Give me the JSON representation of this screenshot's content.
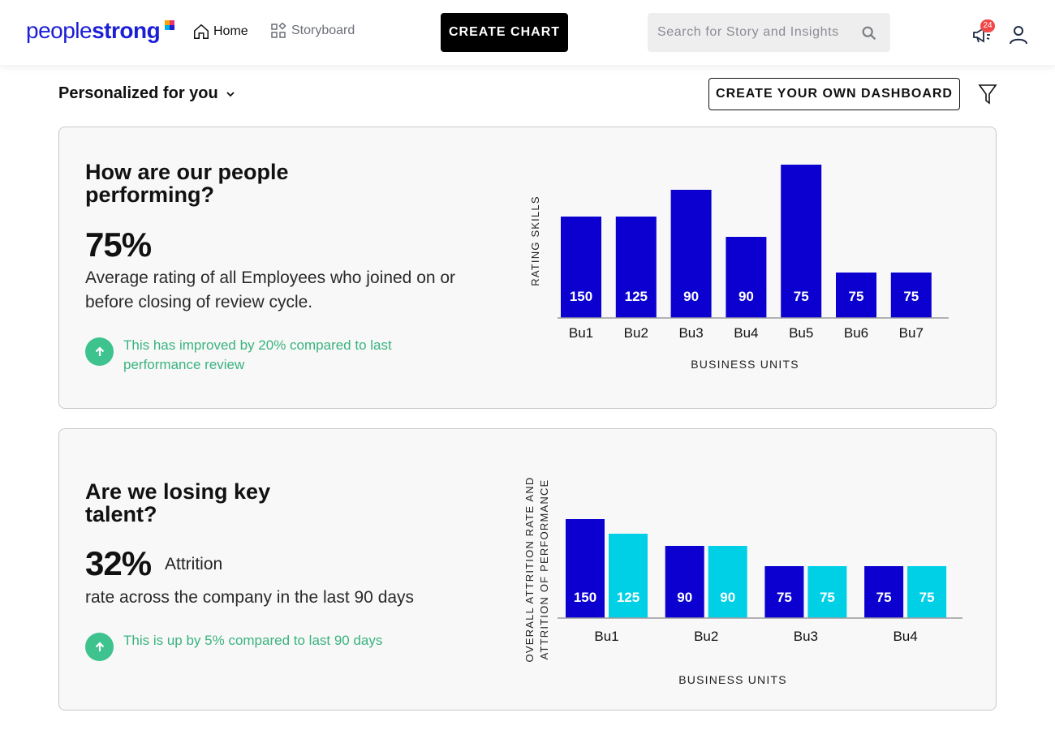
{
  "brand": {
    "name_light": "people",
    "name_bold": "strong"
  },
  "nav": {
    "home_label": "Home",
    "storyboard_label": "Storyboard",
    "create_chart_label": "CREATE CHART",
    "search_placeholder": "Search for Story and Insights",
    "notification_count": "24"
  },
  "header": {
    "personalized_label": "Personalized for you",
    "dashboard_button_label": "CREATE YOUR OWN DASHBOARD"
  },
  "colors": {
    "accent_blue": "#0b00cf",
    "accent_cyan": "#00d0e6",
    "trend_green": "#3ec28e"
  },
  "cards": [
    {
      "title": "How are our people performing?",
      "metric": "75%",
      "metric_suffix": "",
      "description": "Average rating of all Employees who joined on or before closing of review cycle.",
      "trend_text": "This has improved by 20% compared to last performance review"
    },
    {
      "title": "Are we losing key talent?",
      "metric": "32%",
      "metric_suffix": "Attrition",
      "description": "rate across the company in the last 90 days",
      "trend_text": "This is up by 5% compared to last 90 days"
    }
  ],
  "chart_data": [
    {
      "type": "bar",
      "categories": [
        "Bu1",
        "Bu2",
        "Bu3",
        "Bu4",
        "Bu5",
        "Bu6",
        "Bu7"
      ],
      "values": [
        150,
        125,
        90,
        90,
        75,
        75,
        75
      ],
      "bar_heights_relative": [
        125,
        125,
        158,
        100,
        189,
        56,
        56
      ],
      "title": "",
      "xlabel": "BUSINESS UNITS",
      "ylabel": "RATING SKILLS",
      "grid": false
    },
    {
      "type": "bar",
      "categories": [
        "Bu1",
        "Bu2",
        "Bu3",
        "Bu4"
      ],
      "series": [
        {
          "name": "Overall attrition rate",
          "values": [
            150,
            90,
            75,
            75
          ],
          "heights_relative": [
            122,
            89,
            64,
            64
          ]
        },
        {
          "name": "Attrition of performance",
          "values": [
            125,
            90,
            75,
            75
          ],
          "heights_relative": [
            104,
            89,
            64,
            64
          ]
        }
      ],
      "title": "",
      "xlabel": "BUSINESS UNITS",
      "ylabel": "OVERALL ATTRITION RATE AND ATTRITION OF PERFORMANCE",
      "ylabel_lines": [
        "OVERALL ATTRITION RATE AND",
        "ATTRITION OF PERFORMANCE"
      ],
      "grid": false
    }
  ]
}
